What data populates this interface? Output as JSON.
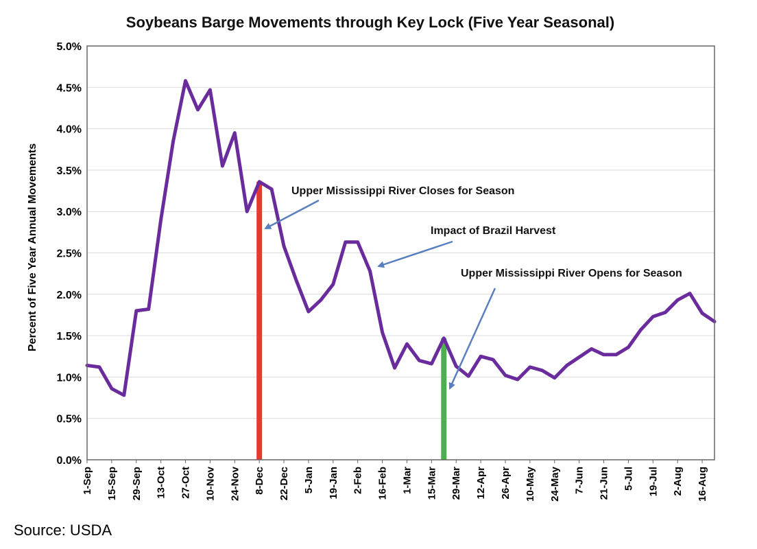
{
  "chart_data": {
    "type": "line",
    "title": "Soybeans Barge Movements through Key Lock (Five Year Seasonal)",
    "xlabel": "",
    "ylabel": "Percent of Five Year Annual Movements",
    "ylim": [
      0,
      5.0
    ],
    "y_ticks": [
      "0.0%",
      "0.5%",
      "1.0%",
      "1.5%",
      "2.0%",
      "2.5%",
      "3.0%",
      "3.5%",
      "4.0%",
      "4.5%",
      "5.0%"
    ],
    "x_tick_labels": [
      "1-Sep",
      "15-Sep",
      "29-Sep",
      "13-Oct",
      "27-Oct",
      "10-Nov",
      "24-Nov",
      "8-Dec",
      "22-Dec",
      "5-Jan",
      "19-Jan",
      "2-Feb",
      "16-Feb",
      "1-Mar",
      "15-Mar",
      "29-Mar",
      "12-Apr",
      "26-Apr",
      "10-May",
      "24-May",
      "7-Jun",
      "21-Jun",
      "5-Jul",
      "19-Jul",
      "2-Aug",
      "16-Aug"
    ],
    "grid": true,
    "legend": "none",
    "series": [
      {
        "color": "#6a2c9c",
        "values": [
          1.14,
          1.12,
          0.86,
          0.78,
          1.8,
          1.82,
          2.9,
          3.85,
          4.58,
          4.23,
          4.47,
          3.55,
          3.95,
          3.0,
          3.36,
          3.27,
          2.58,
          2.17,
          1.79,
          1.93,
          2.12,
          2.63,
          2.63,
          2.28,
          1.54,
          1.11,
          1.4,
          1.2,
          1.16,
          1.47,
          1.13,
          1.01,
          1.25,
          1.21,
          1.02,
          0.97,
          1.12,
          1.08,
          0.99,
          1.14,
          1.24,
          1.34,
          1.27,
          1.27,
          1.36,
          1.57,
          1.73,
          1.78,
          1.93,
          2.01,
          1.77,
          1.67
        ]
      }
    ],
    "markers": [
      {
        "x_index": 14,
        "value": 3.36,
        "color": "#e53a2e"
      },
      {
        "x_index": 29,
        "value": 1.47,
        "color": "#4cb050"
      }
    ],
    "annotations": [
      {
        "text": "Upper Mississippi River Closes for Season",
        "color": "#5a7fbf"
      },
      {
        "text": "Impact of Brazil Harvest",
        "color": "#5a7fbf"
      },
      {
        "text": "Upper Mississippi River Opens for Season",
        "color": "#5a7fbf"
      }
    ]
  },
  "footer": {
    "source": "Source:  USDA"
  }
}
